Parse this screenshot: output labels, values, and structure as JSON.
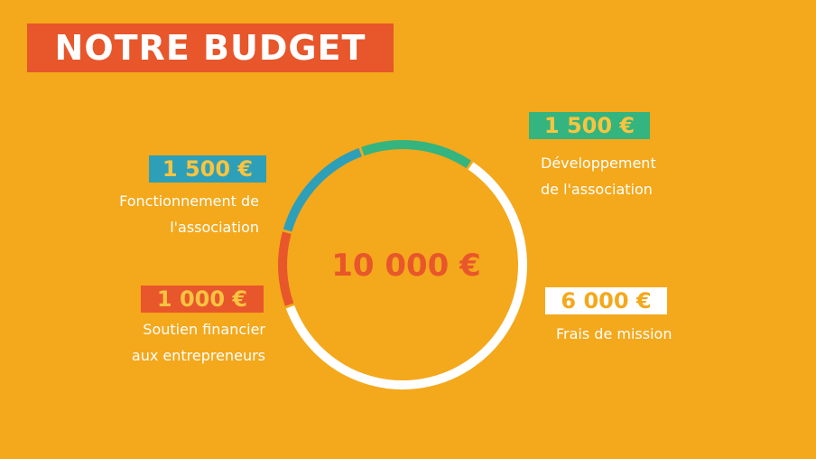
{
  "title": "NOTRE BUDGET",
  "colors": {
    "background": "#F4A81B",
    "title_bg": "#E8562B",
    "center_text": "#E8562B"
  },
  "chart_data": {
    "type": "pie",
    "total_label": "10 000 €",
    "slices": [
      {
        "label_lines": [
          "Développement",
          "de l'association"
        ],
        "value": 1500,
        "value_label": "1 500 €",
        "color": "#34B47F",
        "value_text_color": "#F9C440"
      },
      {
        "label_lines": [
          "Frais de mission"
        ],
        "value": 6000,
        "value_label": "6 000 €",
        "color": "#FFFFFF",
        "value_text_color": "#F4A81B"
      },
      {
        "label_lines": [
          "Soutien financier",
          "aux entrepreneurs"
        ],
        "value": 1000,
        "value_label": "1 000 €",
        "color": "#E8562B",
        "value_text_color": "#F9C440"
      },
      {
        "label_lines": [
          "Fonctionnement de",
          "l'association"
        ],
        "value": 1500,
        "value_label": "1 500 €",
        "color": "#2E9FB8",
        "value_text_color": "#F9C440"
      }
    ]
  }
}
